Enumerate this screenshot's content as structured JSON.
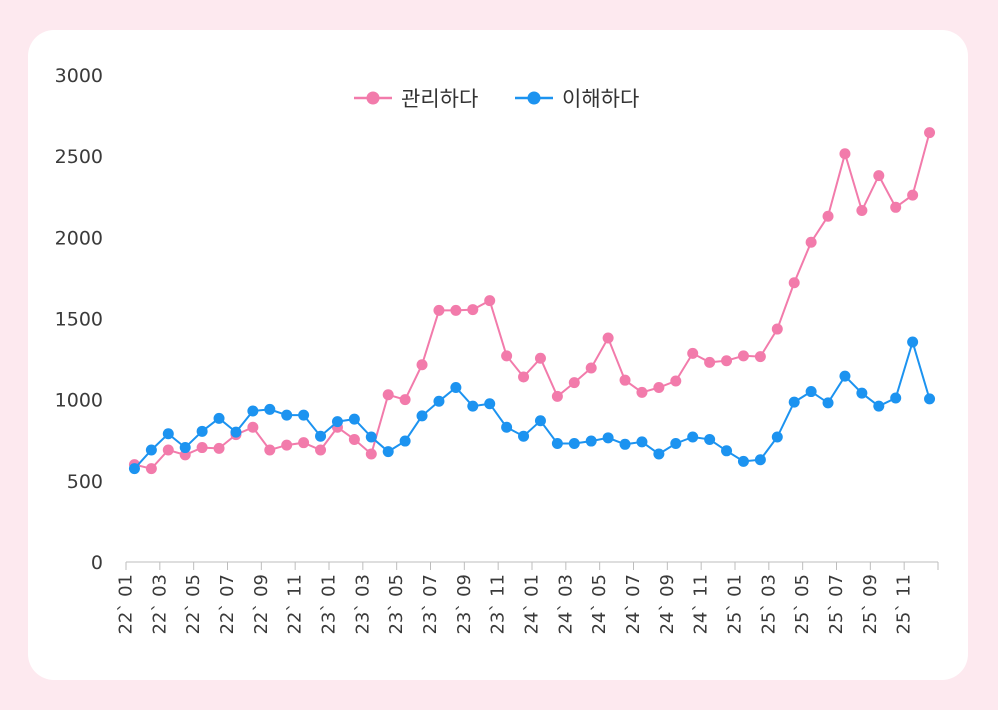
{
  "chart_data": {
    "type": "line",
    "title": "",
    "xlabel": "",
    "ylabel": "",
    "ylim": [
      0,
      3000
    ],
    "yticks": [
      0,
      500,
      1000,
      1500,
      2000,
      2500,
      3000
    ],
    "legend_position": "top-center",
    "grid": false,
    "x": [
      "22` 01",
      "22` 02",
      "22` 03",
      "22` 04",
      "22` 05",
      "22` 06",
      "22` 07",
      "22` 08",
      "22` 09",
      "22` 10",
      "22` 11",
      "22` 12",
      "23` 01",
      "23` 02",
      "23` 03",
      "23` 04",
      "23` 05",
      "23` 06",
      "23` 07",
      "23` 08",
      "23` 09",
      "23` 10",
      "23` 11",
      "23` 12",
      "24` 01",
      "24` 02",
      "24` 03",
      "24` 04",
      "24` 05",
      "24` 06",
      "24` 07",
      "24` 08",
      "24` 09",
      "24` 10",
      "24` 11",
      "24` 12",
      "25` 01",
      "25` 02",
      "25` 03",
      "25` 04",
      "25` 05",
      "25` 06",
      "25` 07",
      "25` 08",
      "25` 09",
      "25` 10",
      "25` 11",
      "25` 12"
    ],
    "x_tick_labels": [
      "22` 01",
      "22` 03",
      "22` 05",
      "22` 07",
      "22` 09",
      "22` 11",
      "23` 01",
      "23` 03",
      "23` 05",
      "23` 07",
      "23` 09",
      "23` 11",
      "24` 01",
      "24` 03",
      "24` 05",
      "24` 07",
      "24` 09",
      "24` 11",
      "25` 01",
      "25` 03",
      "25` 05",
      "25` 07",
      "25` 09",
      "25` 11"
    ],
    "series": [
      {
        "name": "관리하다",
        "color": "#f27bab",
        "values": [
          600,
          575,
          690,
          660,
          705,
          700,
          785,
          830,
          690,
          720,
          735,
          690,
          830,
          755,
          665,
          1030,
          1000,
          1215,
          1550,
          1550,
          1555,
          1610,
          1270,
          1140,
          1255,
          1020,
          1105,
          1195,
          1380,
          1120,
          1045,
          1075,
          1115,
          1285,
          1230,
          1240,
          1270,
          1265,
          1435,
          1720,
          1970,
          2130,
          2515,
          2165,
          2380,
          2185,
          2260,
          2645
        ]
      },
      {
        "name": "이해하다",
        "color": "#1c93f0",
        "values": [
          575,
          690,
          790,
          705,
          805,
          885,
          800,
          930,
          940,
          905,
          905,
          775,
          865,
          880,
          770,
          680,
          745,
          900,
          990,
          1075,
          960,
          975,
          830,
          775,
          870,
          730,
          730,
          745,
          765,
          725,
          740,
          665,
          730,
          770,
          755,
          685,
          620,
          630,
          770,
          985,
          1050,
          980,
          1145,
          1040,
          960,
          1010,
          1355,
          1005
        ]
      }
    ]
  }
}
